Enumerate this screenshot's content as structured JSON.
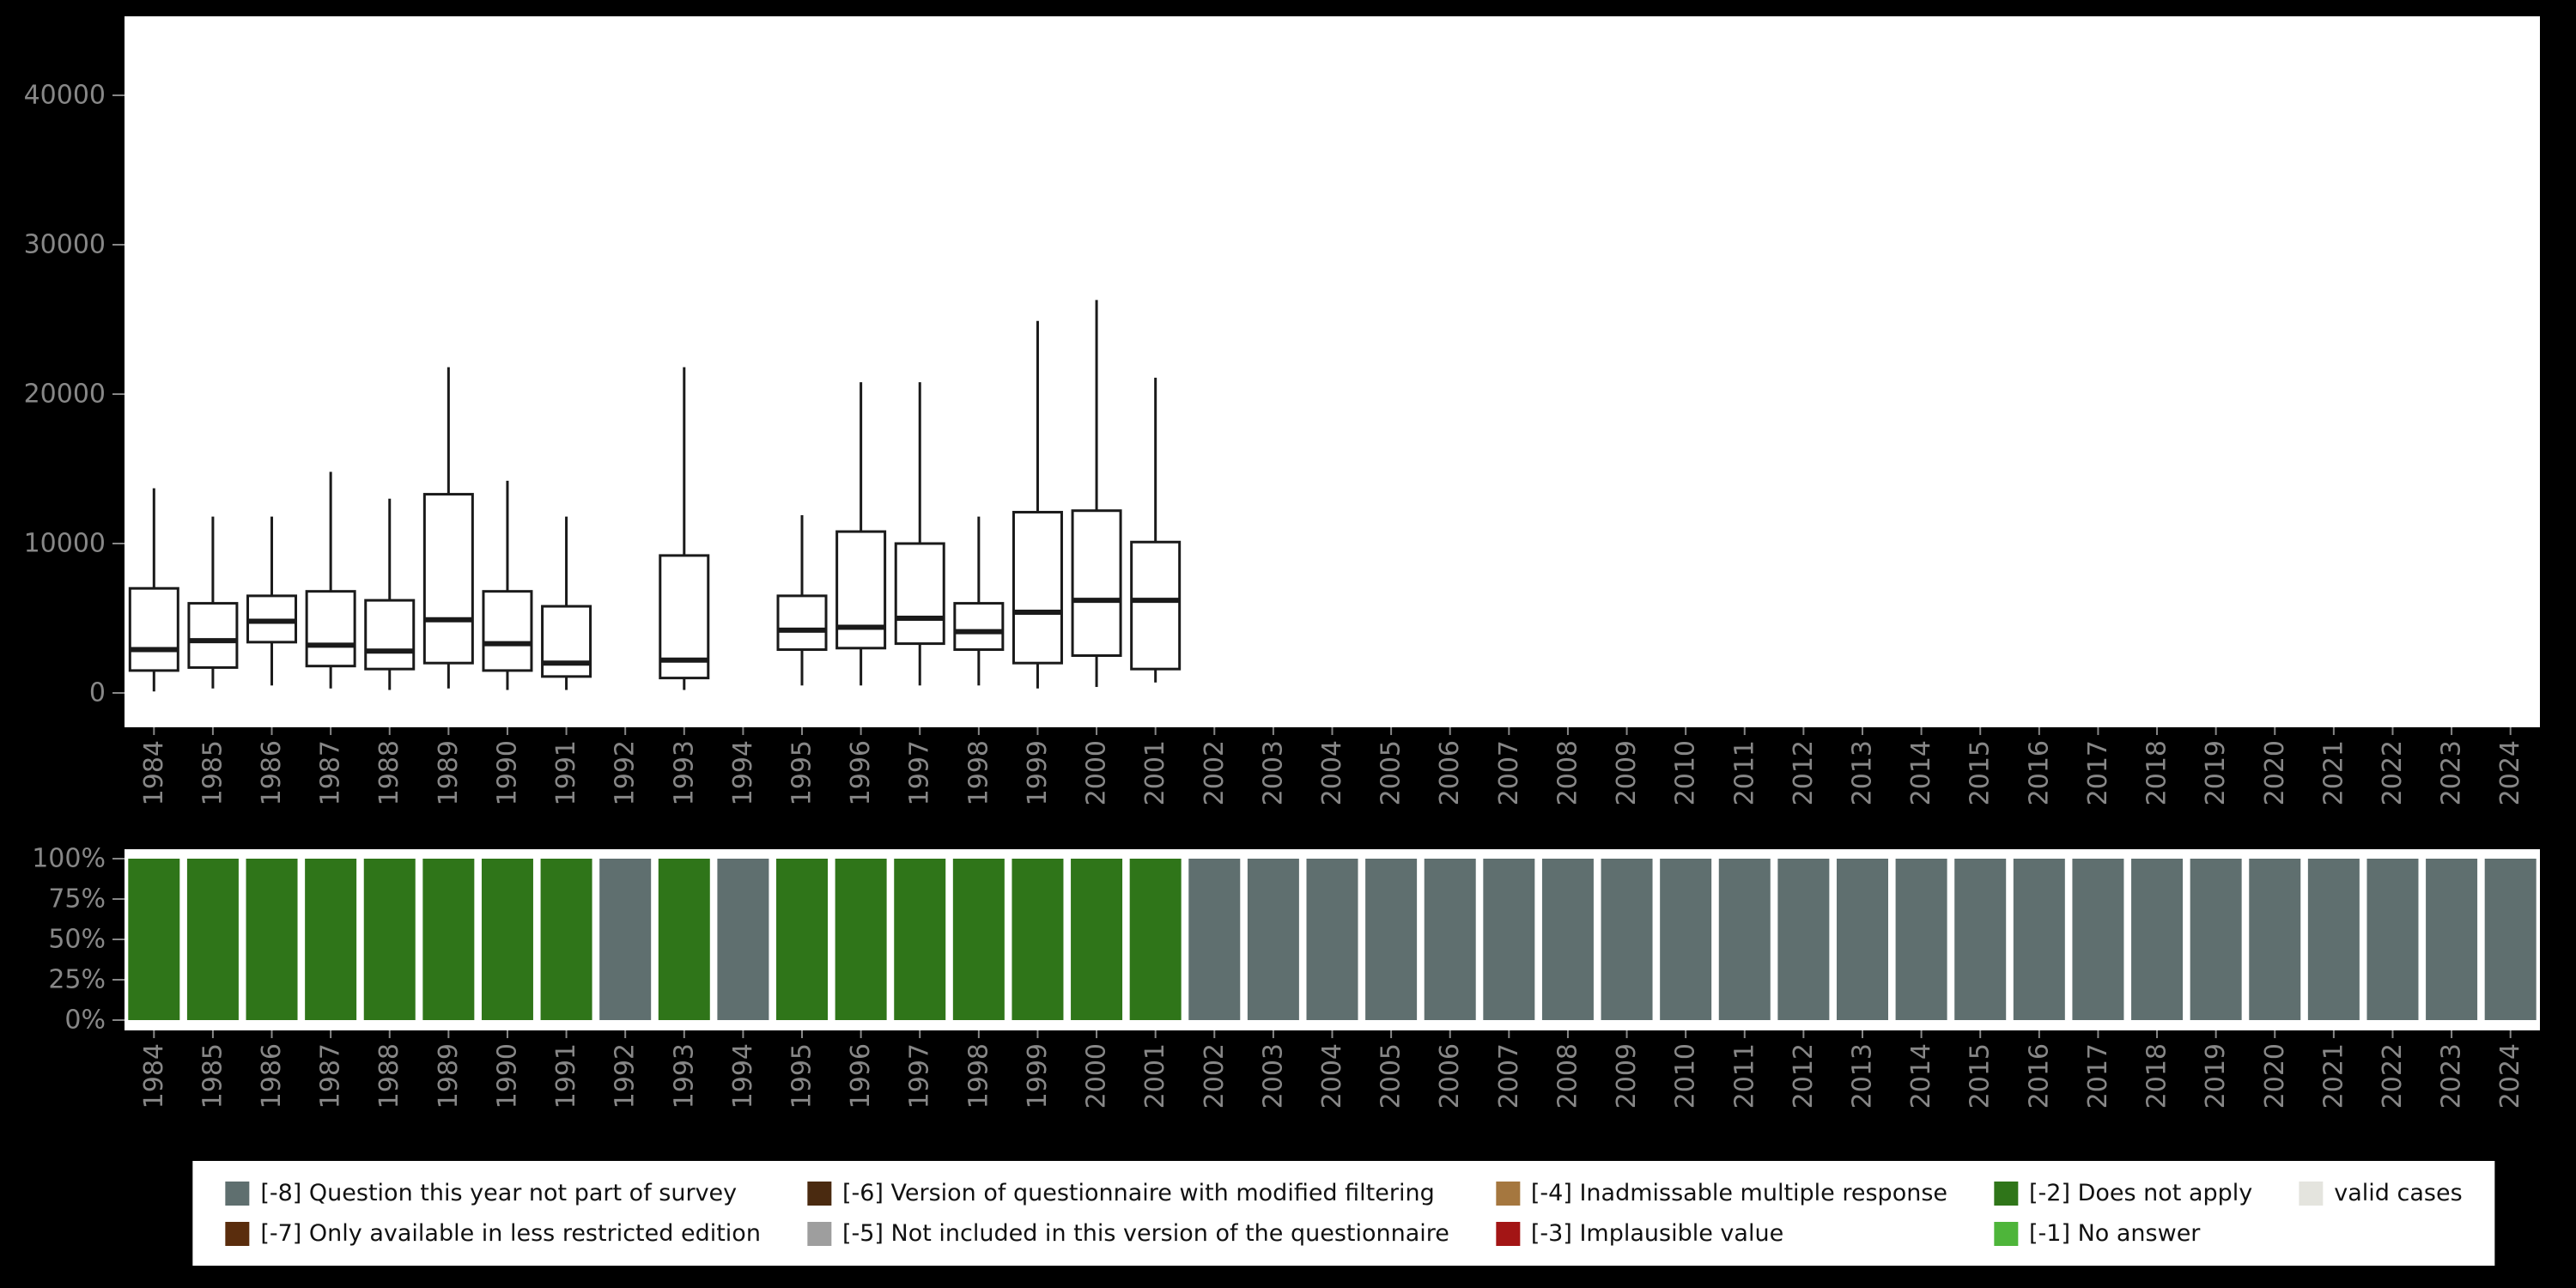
{
  "page": {
    "background": "#000000",
    "plot_background": "#ffffff",
    "axis_text_color": "#878787"
  },
  "chart_data": [
    {
      "id": "boxplot-by-year",
      "type": "boxplot",
      "title": "",
      "xlabel": "",
      "ylabel": "",
      "ylim": [
        0,
        43000
      ],
      "yticks": [
        0,
        10000,
        20000,
        30000,
        40000
      ],
      "ytick_labels": [
        "0",
        "10000",
        "20000",
        "30000",
        "40000"
      ],
      "grid": false,
      "categories": [
        "1984",
        "1985",
        "1986",
        "1987",
        "1988",
        "1989",
        "1990",
        "1991",
        "1992",
        "1993",
        "1994",
        "1995",
        "1996",
        "1997",
        "1998",
        "1999",
        "2000",
        "2001",
        "2002",
        "2003",
        "2004",
        "2005",
        "2006",
        "2007",
        "2008",
        "2009",
        "2010",
        "2011",
        "2012",
        "2013",
        "2014",
        "2015",
        "2016",
        "2017",
        "2018",
        "2019",
        "2020",
        "2021",
        "2022",
        "2023",
        "2024"
      ],
      "boxes": [
        {
          "year": "1984",
          "whisker_low": 100,
          "q1": 1500,
          "median": 2900,
          "q3": 7000,
          "whisker_high": 13700
        },
        {
          "year": "1985",
          "whisker_low": 300,
          "q1": 1700,
          "median": 3500,
          "q3": 6000,
          "whisker_high": 11800
        },
        {
          "year": "1986",
          "whisker_low": 500,
          "q1": 3400,
          "median": 4800,
          "q3": 6500,
          "whisker_high": 11800
        },
        {
          "year": "1987",
          "whisker_low": 300,
          "q1": 1800,
          "median": 3200,
          "q3": 6800,
          "whisker_high": 14800
        },
        {
          "year": "1988",
          "whisker_low": 200,
          "q1": 1600,
          "median": 2800,
          "q3": 6200,
          "whisker_high": 13000
        },
        {
          "year": "1989",
          "whisker_low": 300,
          "q1": 2000,
          "median": 4900,
          "q3": 13300,
          "whisker_high": 21800
        },
        {
          "year": "1990",
          "whisker_low": 200,
          "q1": 1500,
          "median": 3300,
          "q3": 6800,
          "whisker_high": 14200
        },
        {
          "year": "1991",
          "whisker_low": 200,
          "q1": 1100,
          "median": 2000,
          "q3": 5800,
          "whisker_high": 11800
        },
        {
          "year": "1993",
          "whisker_low": 200,
          "q1": 1000,
          "median": 2200,
          "q3": 9200,
          "whisker_high": 21800
        },
        {
          "year": "1995",
          "whisker_low": 500,
          "q1": 2900,
          "median": 4200,
          "q3": 6500,
          "whisker_high": 11900
        },
        {
          "year": "1996",
          "whisker_low": 500,
          "q1": 3000,
          "median": 4400,
          "q3": 10800,
          "whisker_high": 20800
        },
        {
          "year": "1997",
          "whisker_low": 500,
          "q1": 3300,
          "median": 5000,
          "q3": 10000,
          "whisker_high": 20800
        },
        {
          "year": "1998",
          "whisker_low": 500,
          "q1": 2900,
          "median": 4100,
          "q3": 6000,
          "whisker_high": 11800
        },
        {
          "year": "1999",
          "whisker_low": 300,
          "q1": 2000,
          "median": 5400,
          "q3": 12100,
          "whisker_high": 24900
        },
        {
          "year": "2000",
          "whisker_low": 400,
          "q1": 2500,
          "median": 6200,
          "q3": 12200,
          "whisker_high": 26300
        },
        {
          "year": "2001",
          "whisker_low": 700,
          "q1": 1600,
          "median": 6200,
          "q3": 10100,
          "whisker_high": 21100
        }
      ]
    },
    {
      "id": "availability-by-year",
      "type": "bar",
      "stacked_percent": true,
      "title": "",
      "ylim": [
        0,
        100
      ],
      "yticks": [
        0,
        25,
        50,
        75,
        100
      ],
      "ytick_labels": [
        "0%",
        "25%",
        "50%",
        "75%",
        "100%"
      ],
      "categories": [
        "1984",
        "1985",
        "1986",
        "1987",
        "1988",
        "1989",
        "1990",
        "1991",
        "1992",
        "1993",
        "1994",
        "1995",
        "1996",
        "1997",
        "1998",
        "1999",
        "2000",
        "2001",
        "2002",
        "2003",
        "2004",
        "2005",
        "2006",
        "2007",
        "2008",
        "2009",
        "2010",
        "2011",
        "2012",
        "2013",
        "2014",
        "2015",
        "2016",
        "2017",
        "2018",
        "2019",
        "2020",
        "2021",
        "2022",
        "2023",
        "2024"
      ],
      "colors": {
        "-2": "#2f7519",
        "-8": "#5f6f6f"
      },
      "bars": [
        {
          "year": "1984",
          "code": "-2",
          "pct": 100
        },
        {
          "year": "1985",
          "code": "-2",
          "pct": 100
        },
        {
          "year": "1986",
          "code": "-2",
          "pct": 100
        },
        {
          "year": "1987",
          "code": "-2",
          "pct": 100
        },
        {
          "year": "1988",
          "code": "-2",
          "pct": 100
        },
        {
          "year": "1989",
          "code": "-2",
          "pct": 100
        },
        {
          "year": "1990",
          "code": "-2",
          "pct": 100
        },
        {
          "year": "1991",
          "code": "-2",
          "pct": 100
        },
        {
          "year": "1992",
          "code": "-8",
          "pct": 100
        },
        {
          "year": "1993",
          "code": "-2",
          "pct": 100
        },
        {
          "year": "1994",
          "code": "-8",
          "pct": 100
        },
        {
          "year": "1995",
          "code": "-2",
          "pct": 100
        },
        {
          "year": "1996",
          "code": "-2",
          "pct": 100
        },
        {
          "year": "1997",
          "code": "-2",
          "pct": 100
        },
        {
          "year": "1998",
          "code": "-2",
          "pct": 100
        },
        {
          "year": "1999",
          "code": "-2",
          "pct": 100
        },
        {
          "year": "2000",
          "code": "-2",
          "pct": 100
        },
        {
          "year": "2001",
          "code": "-2",
          "pct": 100
        },
        {
          "year": "2002",
          "code": "-8",
          "pct": 100
        },
        {
          "year": "2003",
          "code": "-8",
          "pct": 100
        },
        {
          "year": "2004",
          "code": "-8",
          "pct": 100
        },
        {
          "year": "2005",
          "code": "-8",
          "pct": 100
        },
        {
          "year": "2006",
          "code": "-8",
          "pct": 100
        },
        {
          "year": "2007",
          "code": "-8",
          "pct": 100
        },
        {
          "year": "2008",
          "code": "-8",
          "pct": 100
        },
        {
          "year": "2009",
          "code": "-8",
          "pct": 100
        },
        {
          "year": "2010",
          "code": "-8",
          "pct": 100
        },
        {
          "year": "2011",
          "code": "-8",
          "pct": 100
        },
        {
          "year": "2012",
          "code": "-8",
          "pct": 100
        },
        {
          "year": "2013",
          "code": "-8",
          "pct": 100
        },
        {
          "year": "2014",
          "code": "-8",
          "pct": 100
        },
        {
          "year": "2015",
          "code": "-8",
          "pct": 100
        },
        {
          "year": "2016",
          "code": "-8",
          "pct": 100
        },
        {
          "year": "2017",
          "code": "-8",
          "pct": 100
        },
        {
          "year": "2018",
          "code": "-8",
          "pct": 100
        },
        {
          "year": "2019",
          "code": "-8",
          "pct": 100
        },
        {
          "year": "2020",
          "code": "-8",
          "pct": 100
        },
        {
          "year": "2021",
          "code": "-8",
          "pct": 100
        },
        {
          "year": "2022",
          "code": "-8",
          "pct": 100
        },
        {
          "year": "2023",
          "code": "-8",
          "pct": 100
        },
        {
          "year": "2024",
          "code": "-8",
          "pct": 100
        }
      ]
    }
  ],
  "legend": {
    "items": [
      {
        "label": "[-8] Question this year not part of survey",
        "color": "#5f6f6f"
      },
      {
        "label": "[-6] Version of questionnaire with modified filtering",
        "color": "#4a2a10"
      },
      {
        "label": "[-4] Inadmissable multiple response",
        "color": "#a5773f"
      },
      {
        "label": "[-2] Does not apply",
        "color": "#2f7519"
      },
      {
        "label": "valid cases",
        "color": "#e4e4de"
      },
      {
        "label": "[-7] Only available in less restricted edition",
        "color": "#5a2d0d"
      },
      {
        "label": "[-5] Not included in this version of the questionnaire",
        "color": "#9e9e9e"
      },
      {
        "label": "[-3] Implausible value",
        "color": "#a31515"
      },
      {
        "label": "[-1] No answer",
        "color": "#4eb53a"
      }
    ]
  }
}
